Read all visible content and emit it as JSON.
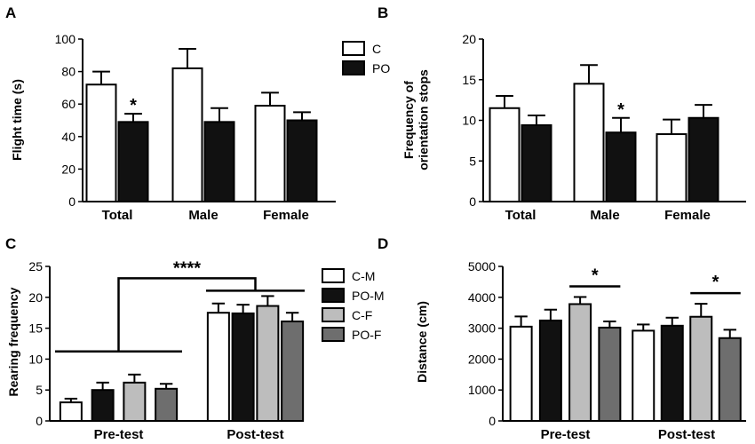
{
  "chart_data": [
    {
      "panel": "A",
      "type": "bar",
      "ylabel": "Flight time (s)",
      "ylim": [
        0,
        100
      ],
      "yticks": [
        0,
        20,
        40,
        60,
        80,
        100
      ],
      "categories": [
        "Total",
        "Male",
        "Female"
      ],
      "series": [
        {
          "name": "C",
          "values": [
            72,
            82,
            59
          ],
          "errors": [
            8,
            12,
            8
          ],
          "color": "#ffffff"
        },
        {
          "name": "PO",
          "values": [
            49,
            49,
            50
          ],
          "errors": [
            5,
            8.5,
            5
          ],
          "color": "#111111"
        }
      ],
      "legend": [
        "C",
        "PO"
      ],
      "annotations": [
        {
          "text": "*",
          "category": "Total",
          "series": "PO"
        }
      ]
    },
    {
      "panel": "B",
      "type": "bar",
      "ylabel": "Frequency of orientation stops",
      "ylabel_lines": [
        "Frequency of",
        "orientation stops"
      ],
      "ylim": [
        0,
        20
      ],
      "yticks": [
        0,
        5,
        10,
        15,
        20
      ],
      "categories": [
        "Total",
        "Male",
        "Female"
      ],
      "series": [
        {
          "name": "C",
          "values": [
            11.5,
            14.5,
            8.3
          ],
          "errors": [
            1.5,
            2.3,
            1.8
          ],
          "color": "#ffffff"
        },
        {
          "name": "PO",
          "values": [
            9.4,
            8.5,
            10.3
          ],
          "errors": [
            1.2,
            1.8,
            1.6
          ],
          "color": "#111111"
        }
      ],
      "annotations": [
        {
          "text": "*",
          "category": "Male",
          "series": "PO"
        }
      ]
    },
    {
      "panel": "C",
      "type": "bar",
      "ylabel": "Rearing frequency",
      "ylim": [
        0,
        25
      ],
      "yticks": [
        0,
        5,
        10,
        15,
        20,
        25
      ],
      "categories": [
        "Pre-test",
        "Post-test"
      ],
      "series": [
        {
          "name": "C-M",
          "values": [
            3,
            17.5
          ],
          "errors": [
            0.6,
            1.5
          ],
          "color": "#ffffff"
        },
        {
          "name": "PO-M",
          "values": [
            5,
            17.4
          ],
          "errors": [
            1.2,
            1.4
          ],
          "color": "#111111"
        },
        {
          "name": "C-F",
          "values": [
            6.2,
            18.6
          ],
          "errors": [
            1.3,
            1.6
          ],
          "color": "#bdbdbd"
        },
        {
          "name": "PO-F",
          "values": [
            5.2,
            16.1
          ],
          "errors": [
            0.8,
            1.4
          ],
          "color": "#6e6e6e"
        }
      ],
      "legend": [
        "C-M",
        "PO-M",
        "C-F",
        "PO-F"
      ],
      "annotations": [
        {
          "text": "****",
          "between": [
            "Pre-test",
            "Post-test"
          ]
        }
      ]
    },
    {
      "panel": "D",
      "type": "bar",
      "ylabel": "Distance (cm)",
      "ylim": [
        0,
        5000
      ],
      "yticks": [
        0,
        1000,
        2000,
        3000,
        4000,
        5000
      ],
      "categories": [
        "Pre-test",
        "Post-test"
      ],
      "series": [
        {
          "name": "C-M",
          "values": [
            3050,
            2920
          ],
          "errors": [
            330,
            200
          ],
          "color": "#ffffff"
        },
        {
          "name": "PO-M",
          "values": [
            3250,
            3080
          ],
          "errors": [
            350,
            260
          ],
          "color": "#111111"
        },
        {
          "name": "C-F",
          "values": [
            3780,
            3370
          ],
          "errors": [
            230,
            420
          ],
          "color": "#bdbdbd"
        },
        {
          "name": "PO-F",
          "values": [
            3020,
            2680
          ],
          "errors": [
            200,
            270
          ],
          "color": "#6e6e6e"
        }
      ],
      "annotations": [
        {
          "text": "*",
          "category": "Pre-test",
          "between_series": [
            "C-F",
            "PO-F"
          ]
        },
        {
          "text": "*",
          "category": "Post-test",
          "between_series": [
            "C-F",
            "PO-F"
          ]
        }
      ]
    }
  ]
}
